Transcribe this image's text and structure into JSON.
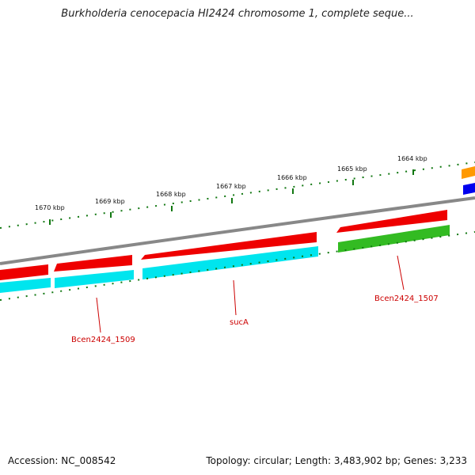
{
  "title": "Burkholderia cenocepacia HI2424 chromosome 1, complete seque...",
  "footer": {
    "accession": "Accession: NC_008542",
    "summary": "Topology: circular; Length: 3,483,902 bp; Genes: 3,233"
  },
  "ticks": [
    "1670 kbp",
    "1669 kbp",
    "1668 kbp",
    "1667 kbp",
    "1666 kbp",
    "1665 kbp",
    "1664 kbp"
  ],
  "genes": [
    {
      "label": "Bcen2424_1509"
    },
    {
      "label": "sucA"
    },
    {
      "label": "Bcen2424_1507"
    }
  ],
  "colors": {
    "forward_feature": "#ee0000",
    "cds_cyan": "#00e5ee",
    "cds_green": "#33bb22",
    "backbone": "#888888",
    "ticks": "#117711",
    "gene_label": "#cc0000",
    "outer_orange": "#ff9900",
    "outer_blue": "#0000ee"
  }
}
